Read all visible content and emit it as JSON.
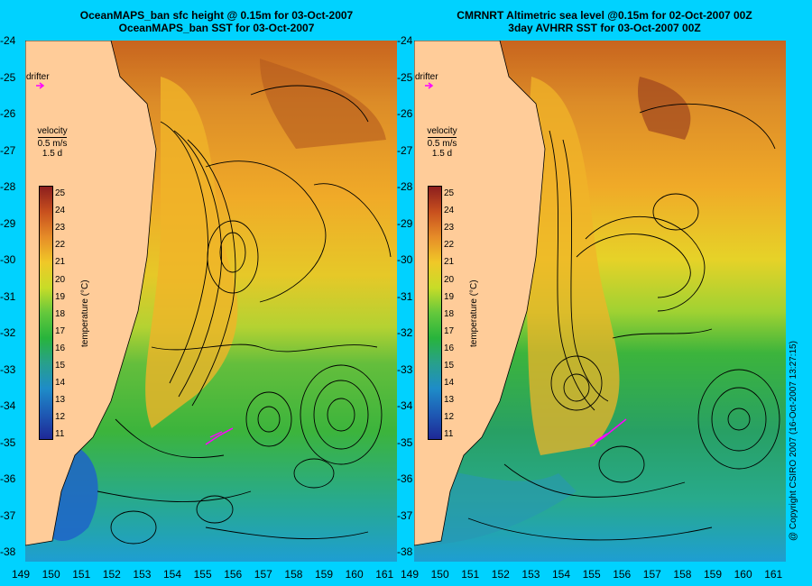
{
  "left_panel": {
    "title_line1": "OceanMAPS_ban sfc height @ 0.15m for 03-Oct-2007",
    "title_line2": "OceanMAPS_ban SST for 03-Oct-2007"
  },
  "right_panel": {
    "title_line1": "CMRNRT Altimetric sea level  @0.15m  for 02-Oct-2007 00Z",
    "title_line2": "3day AVHRR SST for 03-Oct-2007 00Z"
  },
  "y_axis_labels": [
    "-24",
    "-25",
    "-26",
    "-27",
    "-28",
    "-29",
    "-30",
    "-31",
    "-32",
    "-33",
    "-34",
    "-35",
    "-36",
    "-37",
    "-38"
  ],
  "x_axis_left": [
    "149",
    "150",
    "151",
    "152",
    "153",
    "154",
    "155",
    "156",
    "157",
    "158",
    "159",
    "160",
    "161"
  ],
  "x_axis_right": [
    "149",
    "150",
    "151",
    "152",
    "153",
    "154",
    "155",
    "156",
    "157",
    "158",
    "159",
    "160",
    "161"
  ],
  "legend": {
    "drifter_label": "drifter",
    "velocity_label": "velocity",
    "velocity_scale": "0.5 m/s",
    "velocity_duration": "1.5 d",
    "colorbar_title": "temperature (°C)",
    "colorbar_ticks": [
      "25",
      "24",
      "23",
      "22",
      "21",
      "20",
      "19",
      "18",
      "17",
      "16",
      "15",
      "14",
      "13",
      "12",
      "11"
    ]
  },
  "copyright": "@ Copyright CSIRO 2007 (16-Oct-2007 13:27:15)",
  "colors": {
    "background": "#00d2ff",
    "land": "#ffcc99",
    "drifter": "#ff00ff",
    "warm": "#d2781e",
    "mid": "#e6d21e",
    "cool": "#3cb43c",
    "cold": "#1e9ee6"
  }
}
